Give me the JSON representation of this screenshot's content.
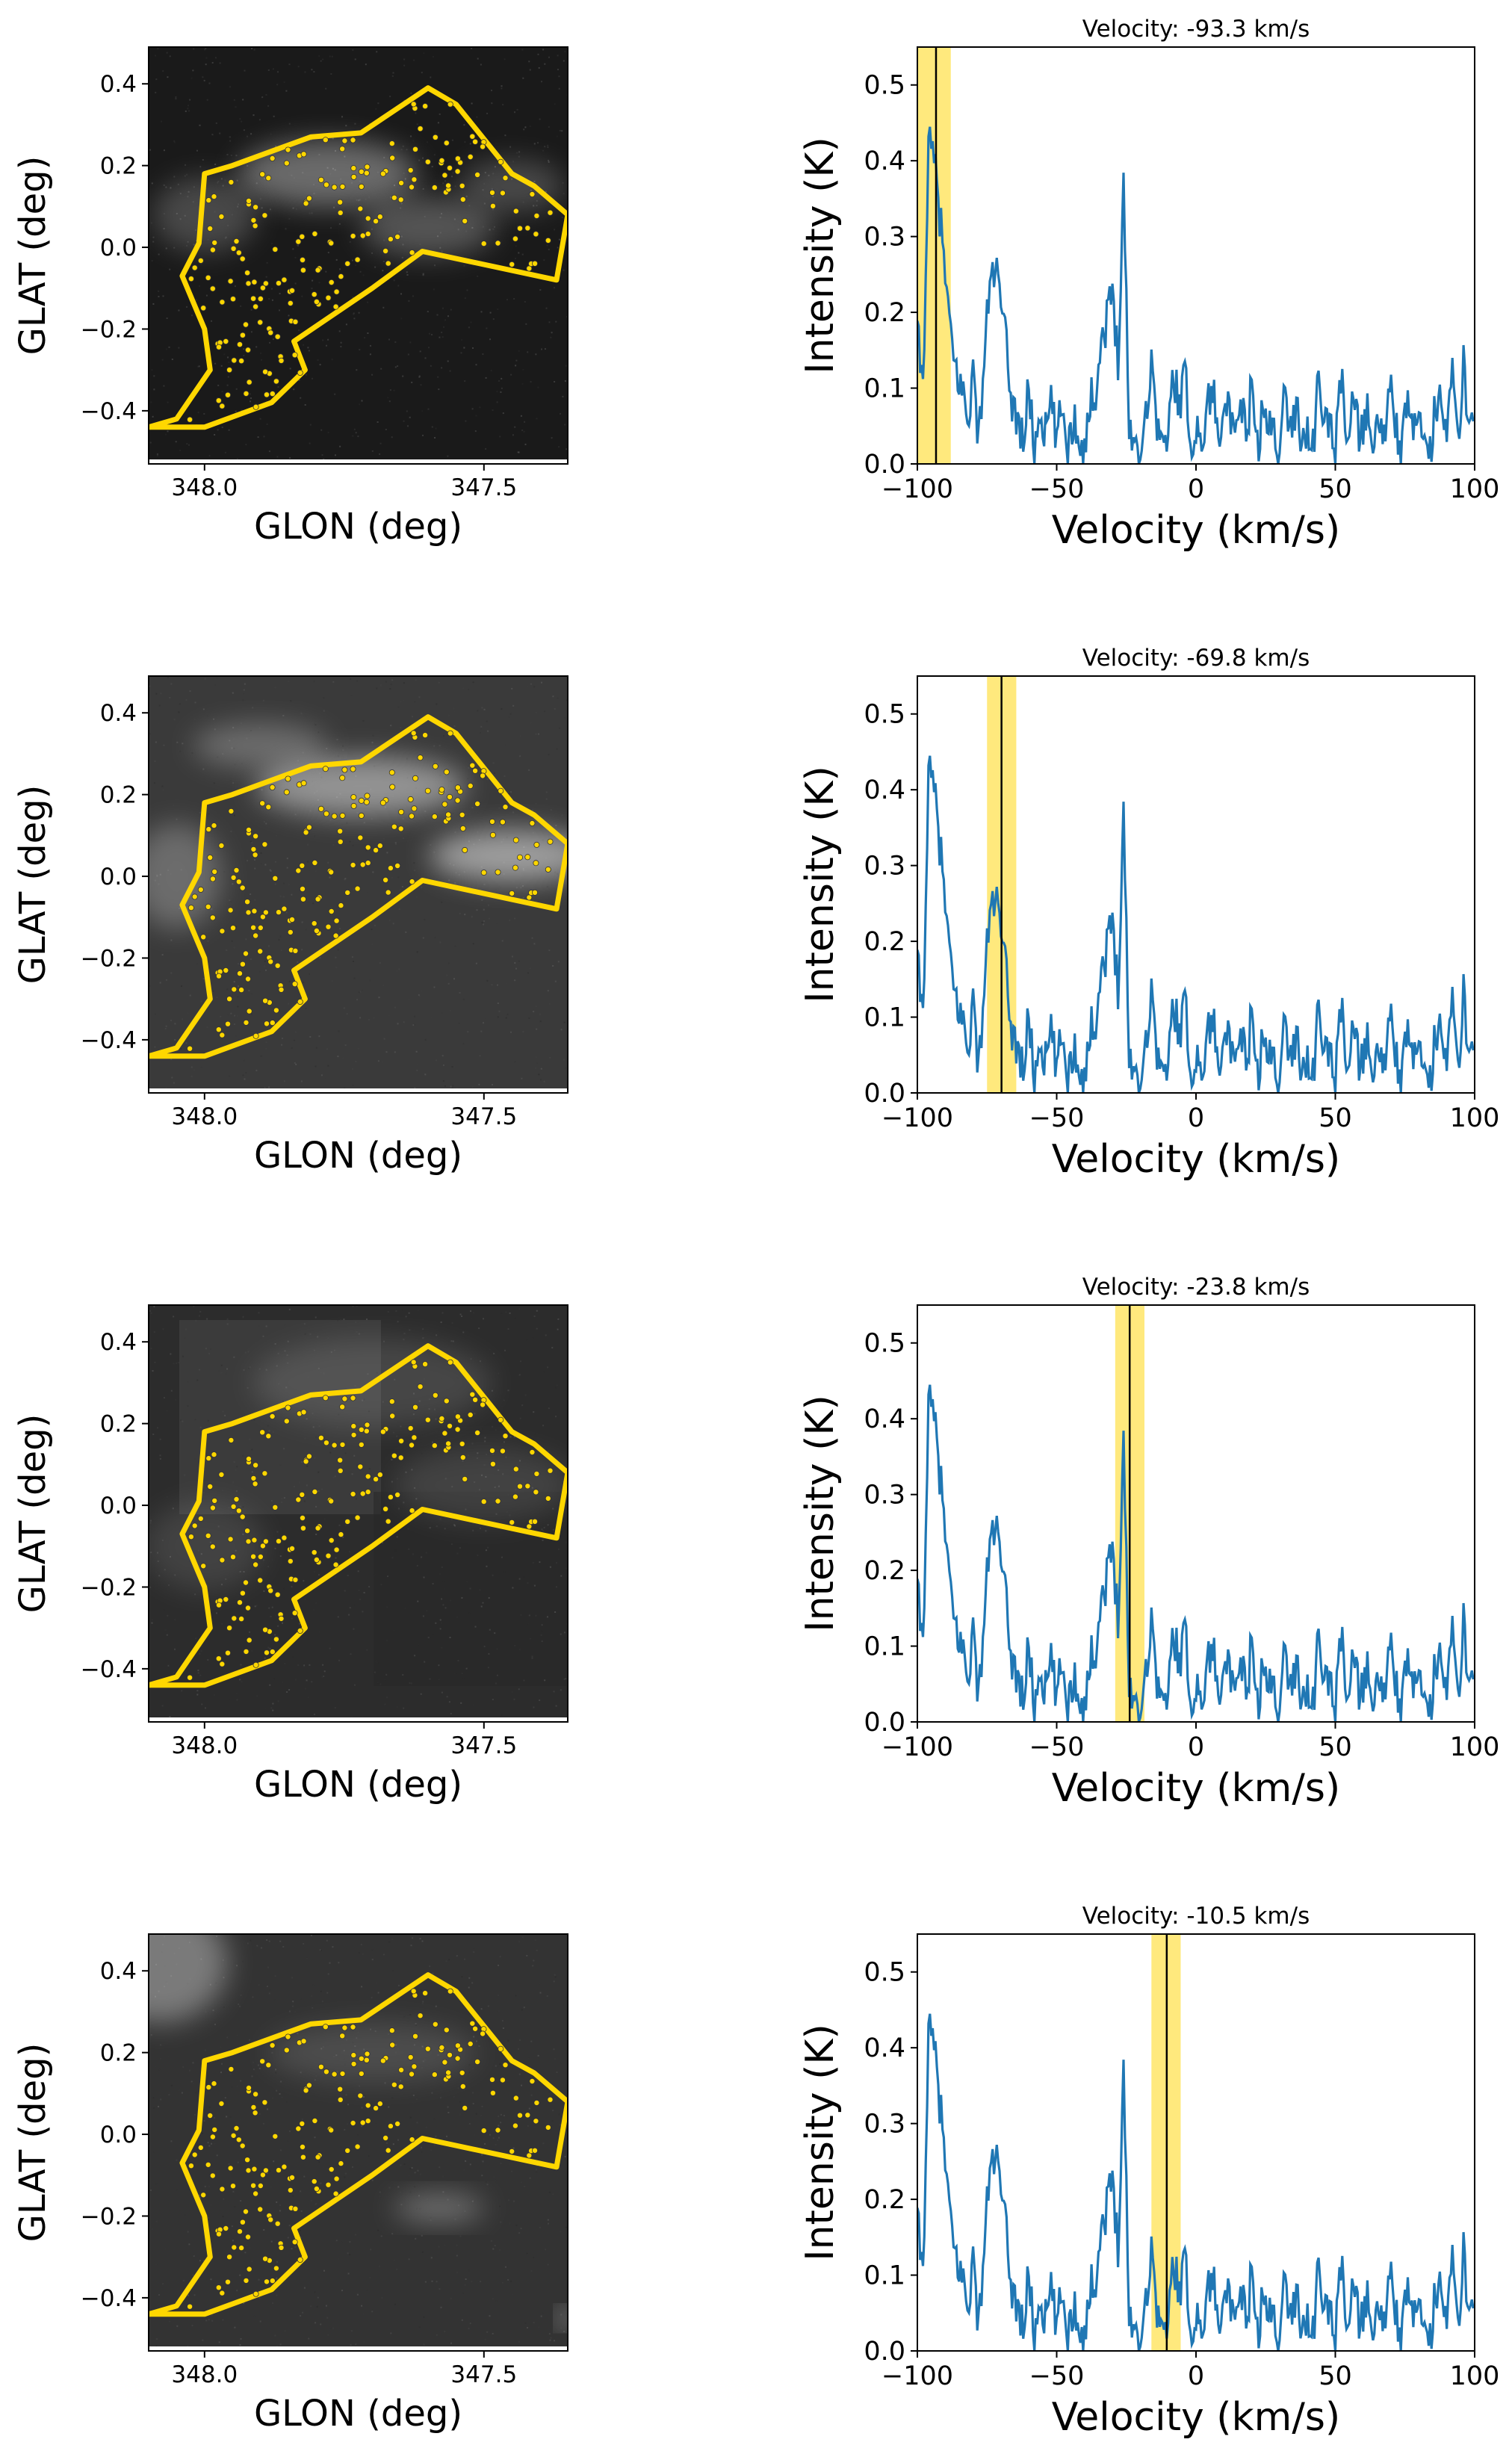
{
  "figure": {
    "map_axes": {
      "xlabel": "GLON (deg)",
      "ylabel": "GLAT (deg)",
      "xlim": [
        348.1,
        347.35
      ],
      "ylim": [
        -0.53,
        0.49
      ],
      "xticks": [
        348.0,
        347.5
      ],
      "xtick_labels": [
        "348.0",
        "347.5"
      ],
      "yticks": [
        -0.4,
        -0.2,
        0.0,
        0.2,
        0.4
      ],
      "ytick_labels": [
        "−0.4",
        "−0.2",
        "0.0",
        "0.2",
        "0.4"
      ]
    },
    "spectrum_axes": {
      "xlabel": "Velocity (km/s)",
      "ylabel": "Intensity (K)",
      "xlim": [
        -100,
        100
      ],
      "ylim": [
        0,
        0.55
      ],
      "xticks": [
        -100,
        -50,
        0,
        50,
        100
      ],
      "xtick_labels": [
        "−100",
        "−50",
        "0",
        "50",
        "100"
      ],
      "yticks": [
        0.0,
        0.1,
        0.2,
        0.3,
        0.4,
        0.5
      ],
      "ytick_labels": [
        "0.0",
        "0.1",
        "0.2",
        "0.3",
        "0.4",
        "0.5"
      ]
    },
    "colors": {
      "spectrum_line": "#1f77b4",
      "region_outline": "#ffd700",
      "velocity_band": "#ffe566",
      "velocity_line": "#000000",
      "source_marker": "#ffd700"
    },
    "panel_titles": [
      "Velocity: -93.3 km/s",
      "Velocity: -69.8 km/s",
      "Velocity: -23.8 km/s",
      "Velocity: -10.5 km/s"
    ]
  },
  "chart_data": [
    {
      "type": "image",
      "panel": 1,
      "xlabel": "GLON (deg)",
      "ylabel": "GLAT (deg)",
      "xlim": [
        348.1,
        347.35
      ],
      "ylim": [
        -0.53,
        0.49
      ],
      "image": "grayscale intensity map",
      "region_outline_glon_glat": [
        [
          348.1,
          -0.44
        ],
        [
          348.0,
          -0.44
        ],
        [
          347.88,
          -0.38
        ],
        [
          347.82,
          -0.3
        ],
        [
          347.84,
          -0.23
        ],
        [
          347.7,
          -0.1
        ],
        [
          347.61,
          -0.01
        ],
        [
          347.37,
          -0.08
        ],
        [
          347.35,
          0.08
        ],
        [
          347.41,
          0.15
        ],
        [
          347.45,
          0.18
        ],
        [
          347.55,
          0.35
        ],
        [
          347.6,
          0.39
        ],
        [
          347.72,
          0.28
        ],
        [
          347.81,
          0.27
        ],
        [
          347.95,
          0.2
        ],
        [
          348.0,
          0.18
        ],
        [
          348.01,
          0.01
        ],
        [
          348.04,
          -0.07
        ],
        [
          348.0,
          -0.2
        ],
        [
          347.99,
          -0.3
        ],
        [
          348.05,
          -0.42
        ],
        [
          348.1,
          -0.44
        ]
      ]
    },
    {
      "type": "line",
      "panel": 1,
      "title": "Velocity: -93.3 km/s",
      "xlabel": "Velocity (km/s)",
      "ylabel": "Intensity (K)",
      "xlim": [
        -100,
        100
      ],
      "ylim": [
        0,
        0.55
      ],
      "highlight_velocity": -93.3,
      "highlight_range": [
        -100,
        -88
      ],
      "spectrum": {
        "x": [
          -100,
          -98,
          -96,
          -94,
          -92,
          -90,
          -88,
          -86,
          -84,
          -82,
          -80,
          -78,
          -76,
          -74,
          -72,
          -70,
          -68,
          -66,
          -64,
          -62,
          -60,
          -58,
          -56,
          -54,
          -52,
          -50,
          -48,
          -46,
          -44,
          -42,
          -40,
          -38,
          -36,
          -34,
          -32,
          -30,
          -28,
          -26,
          -24,
          -22,
          -20,
          -18,
          -16,
          -14,
          -12,
          -10,
          -8,
          -6,
          -4,
          -2,
          0,
          2,
          4,
          6,
          8,
          10,
          12,
          14,
          16,
          18,
          20,
          22,
          24,
          26,
          28,
          30,
          32,
          34,
          36,
          38,
          40,
          42,
          44,
          46,
          48,
          50,
          52,
          54,
          56,
          58,
          60,
          62,
          64,
          66,
          68,
          70,
          72,
          74,
          76,
          78,
          80,
          82,
          84,
          86,
          88,
          90,
          92,
          94,
          96,
          98,
          100
        ],
        "y": [
          0.17,
          0.1,
          0.42,
          0.4,
          0.33,
          0.25,
          0.16,
          0.12,
          0.1,
          0.06,
          0.12,
          0.03,
          0.14,
          0.24,
          0.26,
          0.21,
          0.15,
          0.08,
          0.06,
          0.03,
          0.1,
          0.02,
          0.07,
          0.04,
          0.08,
          0.03,
          0.08,
          0.02,
          0.06,
          0.04,
          0.02,
          0.08,
          0.1,
          0.16,
          0.19,
          0.23,
          0.14,
          0.37,
          0.05,
          0.03,
          0.01,
          0.07,
          0.13,
          0.06,
          0.02,
          0.04,
          0.12,
          0.08,
          0.12,
          0.03,
          0.05,
          0.02,
          0.08,
          0.1,
          0.03,
          0.1,
          0.06,
          0.02,
          0.08,
          0.04,
          0.1,
          0.02,
          0.07,
          0.04,
          0.06,
          0.01,
          0.1,
          0.04,
          0.08,
          0.03,
          0.05,
          0.02,
          0.11,
          0.05,
          0.06,
          0.01,
          0.12,
          0.03,
          0.09,
          0.05,
          0.03,
          0.08,
          0.02,
          0.06,
          0.03,
          0.11,
          0.04,
          0.02,
          0.09,
          0.03,
          0.07,
          0.06,
          0.01,
          0.08,
          0.1,
          0.04,
          0.12,
          0.02,
          0.13,
          0.05,
          0.08
        ]
      }
    },
    {
      "type": "image",
      "panel": 2,
      "xlabel": "GLON (deg)",
      "ylabel": "GLAT (deg)",
      "xlim": [
        348.1,
        347.35
      ],
      "ylim": [
        -0.53,
        0.49
      ],
      "image": "grayscale intensity map"
    },
    {
      "type": "line",
      "panel": 2,
      "title": "Velocity: -69.8 km/s",
      "xlabel": "Velocity (km/s)",
      "ylabel": "Intensity (K)",
      "xlim": [
        -100,
        100
      ],
      "ylim": [
        0,
        0.55
      ],
      "highlight_velocity": -69.8,
      "highlight_range": [
        -75,
        -64.5
      ]
    },
    {
      "type": "image",
      "panel": 3,
      "xlabel": "GLON (deg)",
      "ylabel": "GLAT (deg)",
      "xlim": [
        348.1,
        347.35
      ],
      "ylim": [
        -0.53,
        0.49
      ],
      "image": "grayscale intensity map"
    },
    {
      "type": "line",
      "panel": 3,
      "title": "Velocity: -23.8 km/s",
      "xlabel": "Velocity (km/s)",
      "ylabel": "Intensity (K)",
      "xlim": [
        -100,
        100
      ],
      "ylim": [
        0,
        0.55
      ],
      "highlight_velocity": -23.8,
      "highlight_range": [
        -29,
        -18.5
      ]
    },
    {
      "type": "image",
      "panel": 4,
      "xlabel": "GLON (deg)",
      "ylabel": "GLAT (deg)",
      "xlim": [
        348.1,
        347.35
      ],
      "ylim": [
        -0.53,
        0.49
      ],
      "image": "grayscale intensity map"
    },
    {
      "type": "line",
      "panel": 4,
      "title": "Velocity: -10.5 km/s",
      "xlabel": "Velocity (km/s)",
      "ylabel": "Intensity (K)",
      "xlim": [
        -100,
        100
      ],
      "ylim": [
        0,
        0.55
      ],
      "highlight_velocity": -10.5,
      "highlight_range": [
        -16,
        -5.5
      ]
    }
  ]
}
